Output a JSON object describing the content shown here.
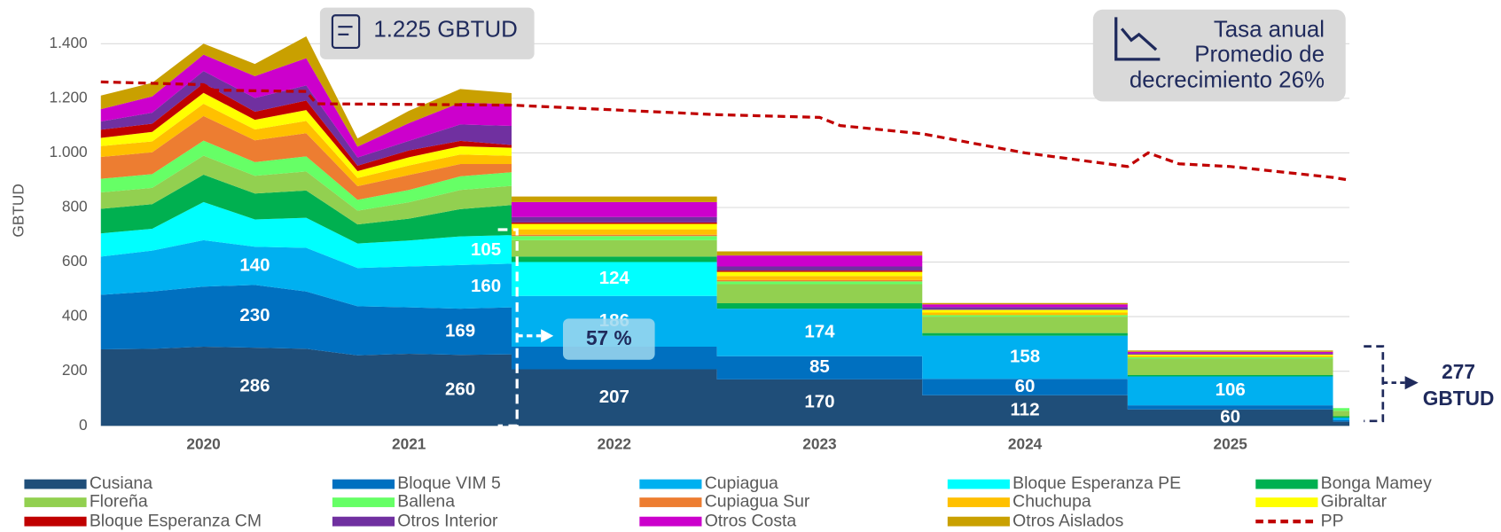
{
  "chart_data": {
    "type": "area",
    "stacked": true,
    "y_label": "GBTUD",
    "grid": true,
    "xlim": [
      2020,
      2026.08
    ],
    "ylim": [
      0,
      1455
    ],
    "xticks": [
      {
        "value": 2020.5,
        "label": "2020"
      },
      {
        "value": 2021.5,
        "label": "2021"
      },
      {
        "value": 2022.5,
        "label": "2022"
      },
      {
        "value": 2023.5,
        "label": "2023"
      },
      {
        "value": 2024.5,
        "label": "2024"
      },
      {
        "value": 2025.5,
        "label": "2025"
      }
    ],
    "yticks": [
      0,
      200,
      400,
      600,
      800,
      {
        "value": 1000,
        "label": "1.000"
      },
      {
        "value": 1200,
        "label": "1.200"
      },
      {
        "value": 1400,
        "label": "1.400"
      }
    ],
    "x": [
      2020,
      2020.25,
      2020.5,
      2020.75,
      2021,
      2021.25,
      2021.5,
      2021.75,
      2022,
      2022,
      2023,
      2023,
      2024,
      2024,
      2025,
      2025,
      2026,
      2026,
      2026.08
    ],
    "series": [
      {
        "name": "Cusiana",
        "color": "#1f4e79",
        "values": [
          280,
          282,
          290,
          286,
          282,
          258,
          264,
          260,
          262,
          207,
          207,
          170,
          170,
          112,
          112,
          60,
          60,
          15,
          15
        ],
        "data_labels": [
          3,
          7,
          9,
          11,
          13,
          15
        ]
      },
      {
        "name": "Bloque VIM 5",
        "color": "#0070c0",
        "values": [
          200,
          210,
          220,
          230,
          210,
          180,
          170,
          169,
          172,
          83,
          83,
          85,
          85,
          60,
          60,
          15,
          15,
          5,
          5
        ],
        "data_labels": [
          3,
          7,
          11,
          13
        ]
      },
      {
        "name": "Cupiagua",
        "color": "#00b0f0",
        "values": [
          140,
          150,
          170,
          140,
          160,
          140,
          150,
          160,
          160,
          186,
          186,
          174,
          174,
          158,
          158,
          106,
          106,
          10,
          10
        ],
        "data_labels": [
          3,
          7,
          9,
          11,
          13,
          15
        ]
      },
      {
        "name": "Bloque Esperanza PE",
        "color": "#00ffff",
        "values": [
          85,
          80,
          140,
          100,
          110,
          90,
          95,
          105,
          105,
          124,
          124,
          0,
          0,
          0,
          0,
          0,
          0,
          0,
          0
        ],
        "data_labels": [
          7,
          9
        ]
      },
      {
        "name": "Bonga Mamey",
        "color": "#00b050",
        "values": [
          90,
          90,
          100,
          95,
          100,
          70,
          80,
          100,
          110,
          20,
          20,
          20,
          20,
          10,
          10,
          5,
          5,
          5,
          5
        ]
      },
      {
        "name": "Floreña",
        "color": "#92d050",
        "values": [
          60,
          60,
          70,
          65,
          70,
          50,
          60,
          70,
          70,
          60,
          60,
          70,
          70,
          60,
          60,
          60,
          60,
          20,
          20
        ]
      },
      {
        "name": "Ballena",
        "color": "#66ff66",
        "values": [
          50,
          50,
          55,
          50,
          55,
          40,
          45,
          50,
          50,
          15,
          15,
          10,
          10,
          5,
          5,
          5,
          5,
          10,
          10
        ]
      },
      {
        "name": "Cupiagua Sur",
        "color": "#ed7d31",
        "values": [
          80,
          80,
          90,
          80,
          85,
          50,
          55,
          45,
          30,
          5,
          5,
          5,
          5,
          0,
          0,
          0,
          0,
          0,
          0
        ]
      },
      {
        "name": "Chuchupa",
        "color": "#ffc000",
        "values": [
          40,
          40,
          45,
          40,
          45,
          30,
          35,
          35,
          30,
          20,
          20,
          15,
          15,
          10,
          10,
          5,
          5,
          0,
          0
        ]
      },
      {
        "name": "Gibraltar",
        "color": "#ffff00",
        "values": [
          30,
          35,
          40,
          35,
          40,
          25,
          30,
          30,
          30,
          20,
          20,
          15,
          15,
          10,
          10,
          5,
          5,
          0,
          0
        ]
      },
      {
        "name": "Bloque Esperanza CM",
        "color": "#c00000",
        "values": [
          30,
          30,
          35,
          30,
          35,
          20,
          25,
          20,
          10,
          5,
          5,
          5,
          5,
          0,
          0,
          0,
          0,
          0,
          0
        ]
      },
      {
        "name": "Otros Interior",
        "color": "#7030a0",
        "values": [
          30,
          40,
          45,
          50,
          55,
          30,
          35,
          60,
          70,
          20,
          20,
          15,
          15,
          10,
          10,
          5,
          5,
          0,
          0
        ]
      },
      {
        "name": "Otros Costa",
        "color": "#cc00cc",
        "values": [
          45,
          60,
          60,
          80,
          100,
          40,
          65,
          80,
          80,
          55,
          55,
          40,
          40,
          10,
          10,
          5,
          5,
          0,
          0
        ]
      },
      {
        "name": "Otros Aislados",
        "color": "#c9a000",
        "values": [
          50,
          50,
          40,
          45,
          80,
          30,
          45,
          50,
          40,
          20,
          20,
          15,
          15,
          5,
          5,
          5,
          5,
          0,
          0
        ]
      },
      {
        "name": "PP",
        "color": "#c00000",
        "type": "line",
        "dashed": true,
        "x": [
          2020,
          2020.5,
          2020.55,
          2021,
          2021.05,
          2022,
          2023,
          2023.5,
          2023.6,
          2024,
          2024.5,
          2025,
          2025.1,
          2025.25,
          2025.5,
          2026,
          2026.08
        ],
        "values": [
          1260,
          1250,
          1230,
          1225,
          1180,
          1175,
          1140,
          1130,
          1100,
          1070,
          1000,
          950,
          1000,
          960,
          950,
          910,
          900
        ]
      }
    ],
    "annotations": {
      "box": "1.225 GBTUD",
      "share": "57 %",
      "rate": [
        "Tasa anual",
        "Promedio de",
        "decrecimiento  26%"
      ],
      "total": [
        "277",
        "GBTUD"
      ]
    }
  }
}
